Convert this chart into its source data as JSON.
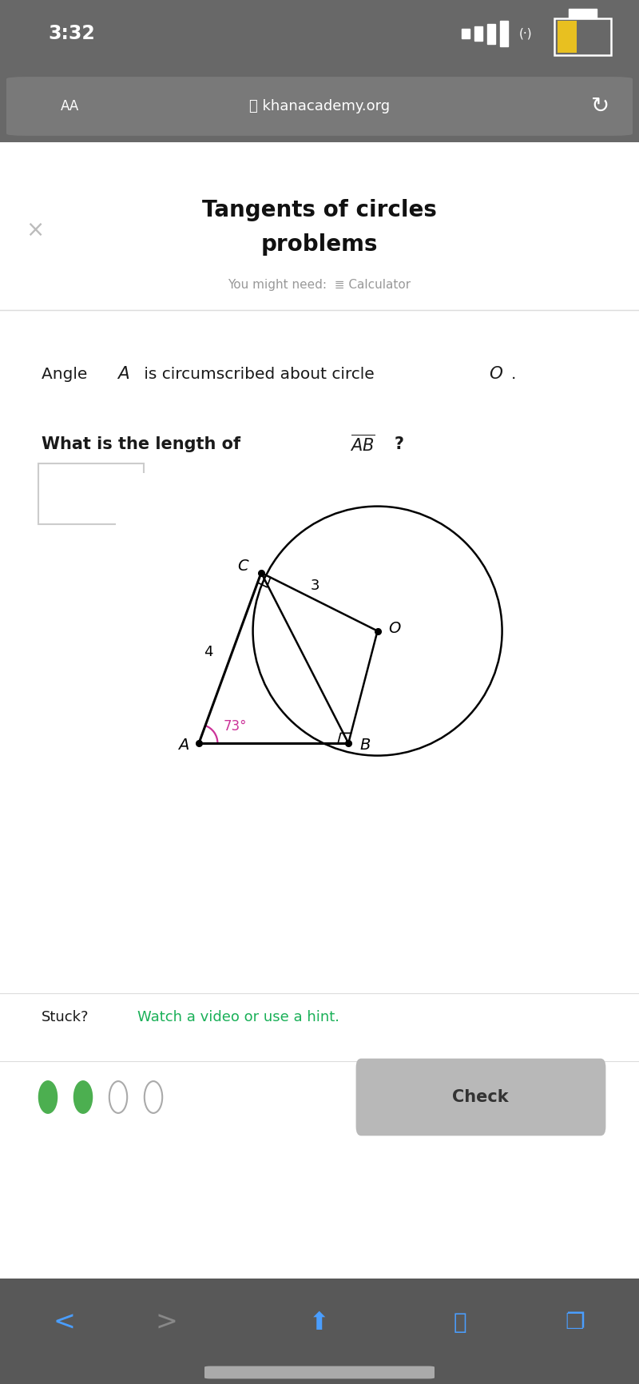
{
  "bg_top": "#686868",
  "bg_white": "#ffffff",
  "bg_nav": "#585858",
  "time_text": "3:32",
  "url_text": "khanacademy.org",
  "title_line1": "Tangents of circles",
  "title_line2": "problems",
  "subtitle_text": "You might need:  ≣ Calculator",
  "check_text": "Check",
  "angle_label": "73°",
  "seg_AC_label": "4",
  "seg_CO_label": "3",
  "angle_color": "#cc3399",
  "green_color": "#4caf50",
  "hint_link_color": "#1ab058",
  "check_bg": "#b8b8b8",
  "dot_color": "#000000",
  "separator_color": "#dddddd",
  "text_color": "#1a1a1a",
  "gray_text": "#888888"
}
